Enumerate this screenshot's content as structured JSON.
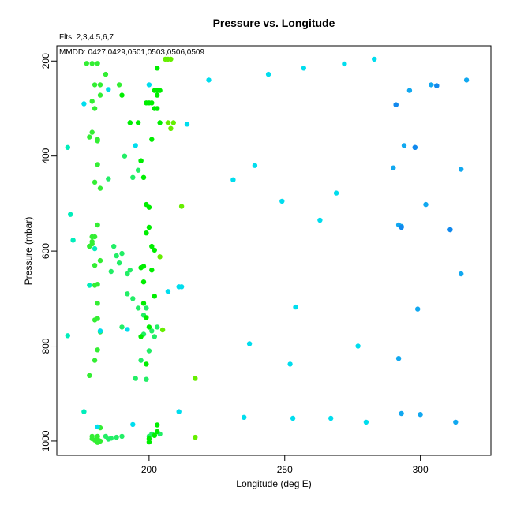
{
  "chart_data": {
    "type": "scatter",
    "title": "Pressure vs. Longitude",
    "xlabel": "Longitude (deg E)",
    "ylabel": "Pressure (mbar)",
    "annotations": [
      "Flts: 2,3,4,5,6,7",
      "MMDD: 0427,0429,0501,0503,0506,0509"
    ],
    "xlim": [
      166,
      326
    ],
    "ylim": [
      1030,
      168
    ],
    "y_inverted": true,
    "xticks": [
      200,
      250,
      300
    ],
    "yticks": [
      200,
      400,
      600,
      800,
      1000
    ],
    "grid": false,
    "colors": {
      "g1": "#33ee33",
      "g2": "#22ee66",
      "g3": "#00ee00",
      "g4": "#66ee00",
      "c1": "#00eebb",
      "c2": "#00ddee",
      "b1": "#11a8f0",
      "b2": "#1188ee"
    },
    "series": [
      {
        "color_key": "g1",
        "x": [
          177,
          179,
          181,
          180,
          182,
          184,
          189,
          182,
          180,
          179,
          178,
          179,
          181,
          181,
          181,
          182,
          180,
          179,
          178,
          179,
          180,
          181,
          182,
          181,
          180,
          181,
          182,
          181,
          180,
          178,
          179,
          181,
          182,
          181,
          180,
          179,
          181,
          182,
          181,
          180,
          179,
          180
        ],
        "y": [
          205,
          205,
          205,
          250,
          250,
          228,
          250,
          272,
          300,
          285,
          360,
          350,
          365,
          368,
          418,
          468,
          455,
          580,
          590,
          570,
          630,
          670,
          620,
          742,
          745,
          710,
          770,
          808,
          830,
          862,
          990,
          996,
          1000,
          1003,
          998,
          995,
          990,
          972,
          545,
          570,
          585,
          672
        ]
      },
      {
        "color_key": "g2",
        "x": [
          185,
          187,
          190,
          192,
          193,
          195,
          197,
          199,
          200,
          201,
          202,
          203,
          198,
          197,
          196,
          194,
          193,
          191,
          190,
          188,
          186,
          185,
          184,
          186,
          188,
          189,
          190,
          192,
          194,
          196,
          198,
          199,
          200,
          201,
          202,
          204
        ],
        "y": [
          448,
          590,
          760,
          690,
          640,
          868,
          830,
          870,
          810,
          768,
          780,
          760,
          775,
          410,
          430,
          445,
          330,
          400,
          990,
          992,
          994,
          996,
          990,
          643,
          610,
          625,
          605,
          648,
          700,
          720,
          735,
          720,
          990,
          985,
          988,
          985
        ]
      },
      {
        "color_key": "g3",
        "x": [
          193,
          196,
          197,
          198,
          199,
          200,
          201,
          202,
          203,
          204,
          203,
          202,
          201,
          200,
          199,
          198,
          197,
          198,
          199,
          200,
          201,
          202,
          203,
          204,
          203,
          202,
          201,
          200,
          199,
          198,
          197,
          199,
          200,
          202,
          203,
          200,
          203,
          190
        ],
        "y": [
          330,
          330,
          410,
          445,
          288,
          288,
          288,
          262,
          262,
          262,
          272,
          300,
          365,
          508,
          502,
          632,
          635,
          665,
          562,
          550,
          590,
          598,
          300,
          330,
          215,
          695,
          640,
          760,
          740,
          710,
          780,
          838,
          1002,
          988,
          966,
          995,
          980,
          272
        ]
      },
      {
        "color_key": "g4",
        "x": [
          206,
          208,
          204,
          207,
          208,
          212,
          205,
          217,
          217,
          207,
          209
        ],
        "y": [
          196,
          196,
          612,
          330,
          342,
          506,
          766,
          868,
          992,
          196,
          330
        ]
      },
      {
        "color_key": "c1",
        "x": [
          170,
          171,
          172,
          170,
          176,
          178,
          180
        ],
        "y": [
          382,
          523,
          577,
          778,
          938,
          672,
          595
        ]
      },
      {
        "color_key": "c2",
        "x": [
          200,
          211,
          212,
          207,
          214,
          222,
          231,
          237,
          239,
          244,
          249,
          252,
          254,
          253,
          257,
          263,
          267,
          269,
          272,
          277,
          280,
          283,
          235,
          211,
          194,
          181,
          176,
          185,
          192,
          195,
          182
        ],
        "y": [
          250,
          938,
          675,
          685,
          333,
          240,
          450,
          795,
          420,
          228,
          495,
          838,
          718,
          952,
          215,
          535,
          952,
          478,
          206,
          800,
          960,
          196,
          950,
          675,
          965,
          970,
          290,
          260,
          765,
          378,
          768
        ]
      },
      {
        "color_key": "b1",
        "x": [
          291,
          292,
          294,
          296,
          298,
          290,
          302,
          304,
          306,
          299,
          292,
          293,
          293,
          300,
          311,
          313,
          315,
          315,
          317
        ],
        "y": [
          292,
          545,
          378,
          262,
          382,
          425,
          502,
          250,
          252,
          722,
          826,
          942,
          548,
          944,
          555,
          960,
          648,
          428,
          240
        ]
      },
      {
        "color_key": "b2",
        "x": [
          291,
          293,
          298,
          306,
          311
        ],
        "y": [
          292,
          550,
          382,
          252,
          555
        ]
      }
    ]
  }
}
